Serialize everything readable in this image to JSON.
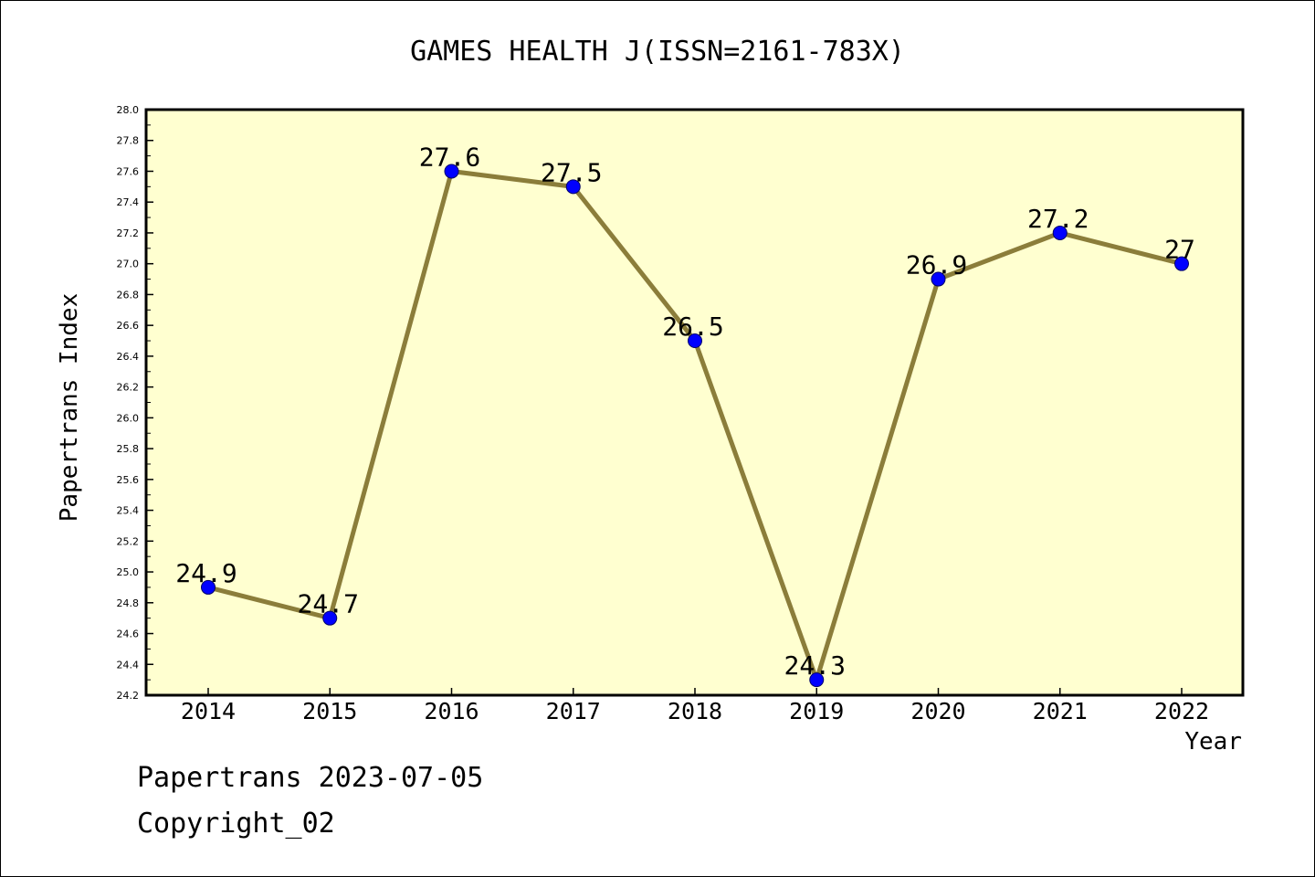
{
  "chart_data": {
    "type": "line",
    "title": "GAMES HEALTH J(ISSN=2161-783X)",
    "xlabel": "Year",
    "ylabel": "Papertrans Index",
    "x": [
      "2014",
      "2015",
      "2016",
      "2017",
      "2018",
      "2019",
      "2020",
      "2021",
      "2022"
    ],
    "series": [
      {
        "values": [
          24.9,
          24.7,
          27.6,
          27.5,
          26.5,
          24.3,
          26.9,
          27.2,
          27.0
        ]
      }
    ],
    "data_labels": [
      "24.9",
      "24.7",
      "27.6",
      "27.5",
      "26.5",
      "24.3",
      "26.9",
      "27.2",
      "27"
    ],
    "y_ticks": [
      "24.2",
      "24.4",
      "24.6",
      "24.8",
      "25.0",
      "25.2",
      "25.4",
      "25.6",
      "25.8",
      "26.0",
      "26.2",
      "26.4",
      "26.6",
      "26.8",
      "27.0",
      "27.2",
      "27.4",
      "27.6",
      "27.8",
      "28.0"
    ],
    "ylim": [
      24.2,
      28.0
    ],
    "grid": false,
    "colors": {
      "line": "#8b7d3a",
      "marker": "#0000ff",
      "plot_bg": "#ffffd0"
    }
  },
  "footer": {
    "line1": "Papertrans 2023-07-05",
    "line2": "Copyright_02"
  }
}
